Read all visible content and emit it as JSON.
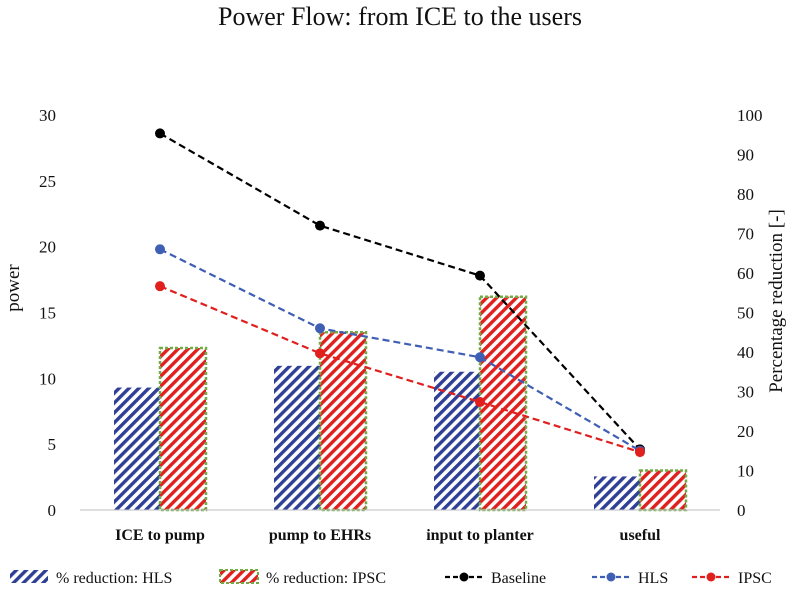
{
  "chart_data": {
    "type": "bar",
    "title": "Power Flow: from ICE to the users",
    "categories": [
      "ICE to pump",
      "pump to EHRs",
      "input to planter",
      "useful"
    ],
    "ylabel": "power",
    "y2label": "Percentage reduction [-]",
    "ylim": [
      0,
      30
    ],
    "y2lim": [
      0,
      100
    ],
    "yticks": [
      "0",
      "5",
      "10",
      "15",
      "20",
      "25",
      "30"
    ],
    "y2ticks": [
      "0",
      "10",
      "20",
      "30",
      "40",
      "50",
      "60",
      "70",
      "80",
      "90",
      "100"
    ],
    "bar_series": [
      {
        "name": "% reduction: HLS",
        "axis": "right",
        "values": [
          31,
          36.5,
          35,
          8.5
        ],
        "color": "#2f3f96"
      },
      {
        "name": "% reduction: IPSC",
        "axis": "right",
        "values": [
          41,
          45,
          54,
          10
        ],
        "color": "#e0201f",
        "border": "#70ad47"
      }
    ],
    "line_series": [
      {
        "name": "Baseline",
        "axis": "left",
        "values": [
          28.6,
          21.6,
          17.8,
          4.6
        ],
        "color": "#000000"
      },
      {
        "name": "HLS",
        "axis": "left",
        "values": [
          19.8,
          13.8,
          11.6,
          4.5
        ],
        "color": "#3f5fb5"
      },
      {
        "name": "IPSC",
        "axis": "left",
        "values": [
          17.0,
          11.9,
          8.2,
          4.4
        ],
        "color": "#e0201f"
      }
    ],
    "legend": [
      "% reduction: HLS",
      "% reduction: IPSC",
      "Baseline",
      "HLS",
      "IPSC"
    ],
    "legend_position": "bottom"
  }
}
